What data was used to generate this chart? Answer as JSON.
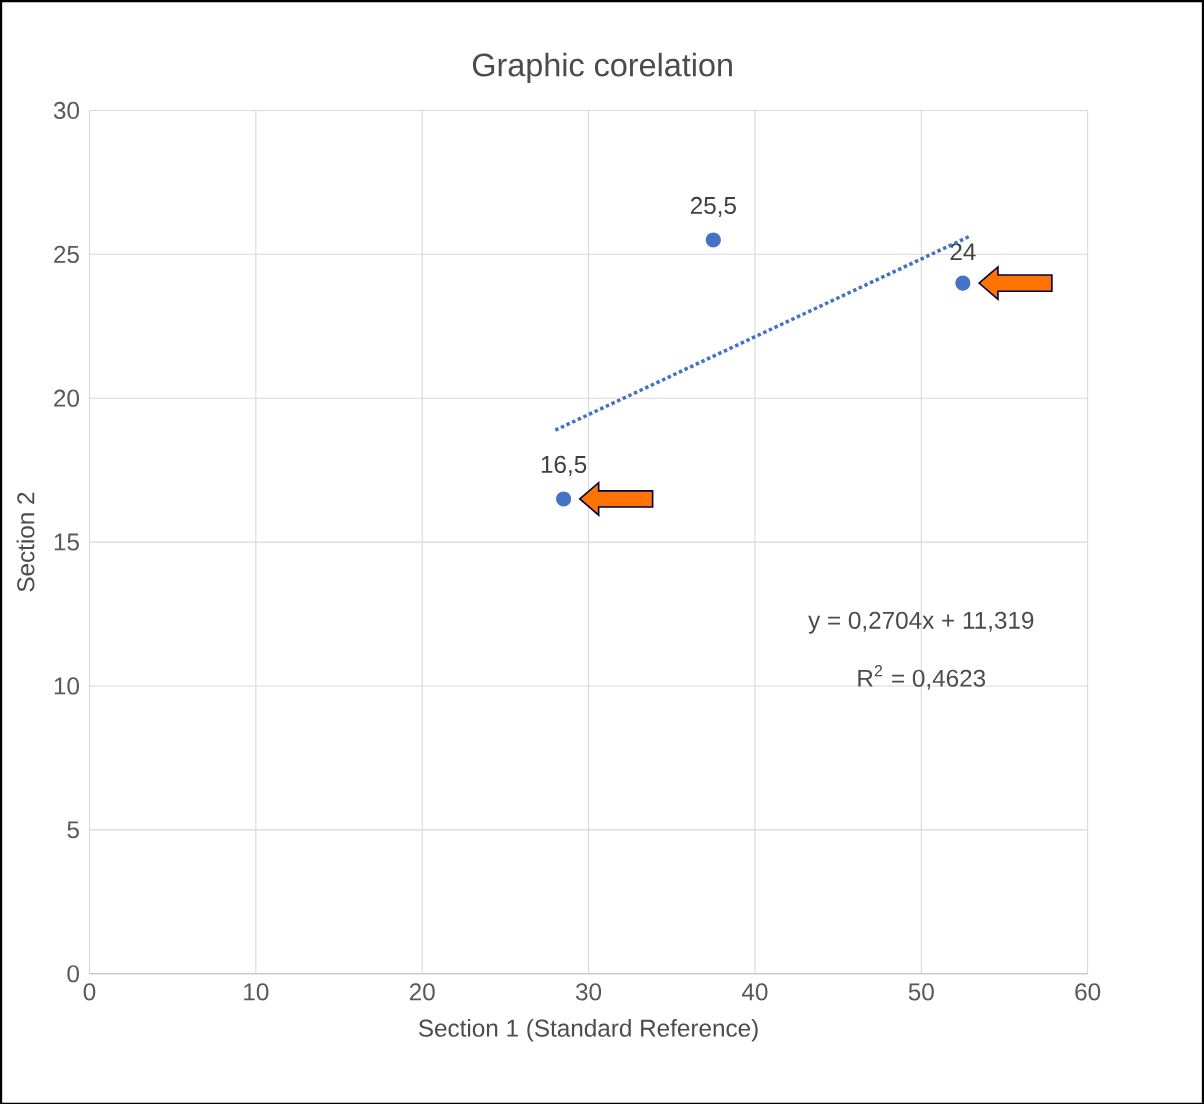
{
  "chart_data": {
    "type": "scatter",
    "title": "Graphic corelation",
    "xlabel": "Section 1 (Standard Reference)",
    "ylabel": "Section 2",
    "xlim": [
      0,
      60
    ],
    "xticks": [
      0,
      10,
      20,
      30,
      40,
      50,
      60
    ],
    "ylim": [
      0,
      30
    ],
    "yticks": [
      0,
      5,
      10,
      15,
      20,
      25,
      30
    ],
    "grid": true,
    "series": [
      {
        "type": "scatter",
        "marker": "circle",
        "color": "#4472c4",
        "x": [
          28.5,
          37.5,
          52.5
        ],
        "values": [
          16.5,
          25.5,
          24
        ],
        "value_labels": [
          "16,5",
          "25,5",
          "24"
        ]
      },
      {
        "type": "line",
        "color": "#4472c4",
        "line_style": "dotted",
        "marker": "none",
        "x": [
          28,
          53
        ],
        "values": [
          18.89,
          25.65
        ]
      }
    ],
    "annotations": [
      "y = 0,2704x + 11,319",
      "R$^{2}$ = 0,4623"
    ]
  }
}
